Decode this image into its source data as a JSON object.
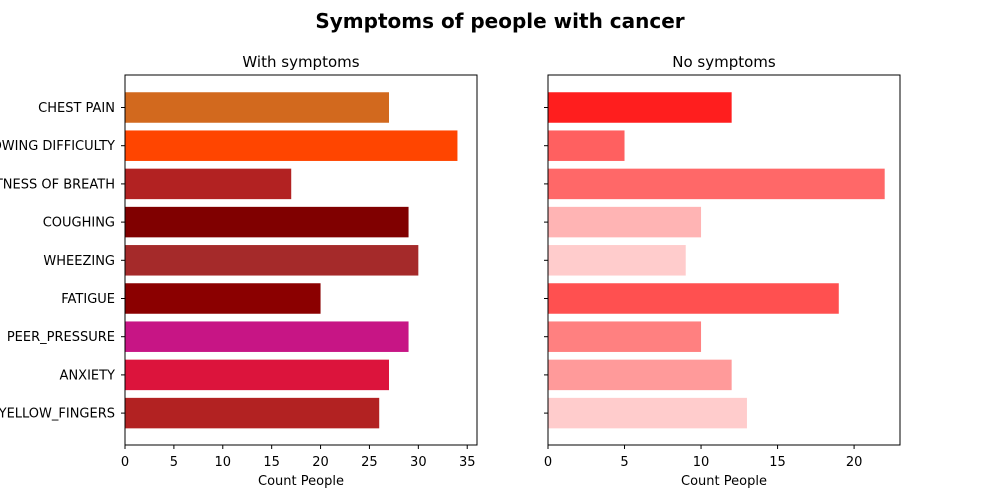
{
  "figure_title": "Symptoms of people with cancer",
  "chart_data": [
    {
      "type": "bar",
      "orientation": "horizontal",
      "title": "With symptoms",
      "xlabel": "Count People",
      "ylabel": "",
      "xlim": [
        0,
        36
      ],
      "xticks": [
        0,
        5,
        10,
        15,
        20,
        25,
        30,
        35
      ],
      "grid": false,
      "categories": [
        "CHEST PAIN",
        "SWALLOWING DIFFICULTY",
        "SHORTNESS OF BREATH",
        "COUGHING",
        "WHEEZING",
        "FATIGUE ",
        "PEER_PRESSURE",
        "ANXIETY",
        "YELLOW_FINGERS"
      ],
      "values": [
        27,
        34,
        17,
        29,
        30,
        20,
        29,
        27,
        26
      ],
      "colors": [
        "#d2691e",
        "#ff4500",
        "#b22222",
        "#800000",
        "#a52a2a",
        "#8b0000",
        "#c71585",
        "#dc143c",
        "#b22222"
      ]
    },
    {
      "type": "bar",
      "orientation": "horizontal",
      "title": "No symptoms",
      "xlabel": "Count People",
      "ylabel": "",
      "xlim": [
        0,
        23
      ],
      "xticks": [
        0,
        5,
        10,
        15,
        20
      ],
      "grid": false,
      "categories": [
        "CHEST PAIN",
        "SWALLOWING DIFFICULTY",
        "SHORTNESS OF BREATH",
        "COUGHING",
        "WHEEZING",
        "FATIGUE ",
        "PEER_PRESSURE",
        "ANXIETY",
        "YELLOW_FINGERS"
      ],
      "values": [
        12,
        5,
        22,
        10,
        9,
        19,
        10,
        12,
        13
      ],
      "colors": [
        "#ff1e1e",
        "#ff6060",
        "#ff6868",
        "#ffb4b4",
        "#ffcccc",
        "#ff5050",
        "#ff8080",
        "#ff9a9a",
        "#ffcccc"
      ]
    }
  ]
}
